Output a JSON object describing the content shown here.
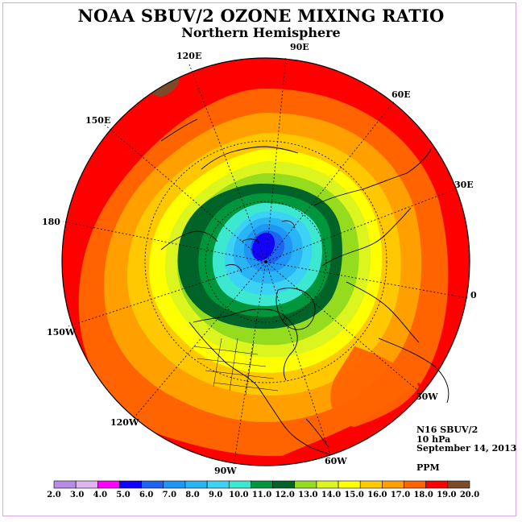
{
  "title": "NOAA SBUV/2 OZONE MIXING RATIO",
  "subtitle": "Northern Hemisphere",
  "longitude_labels": {
    "lon_90E": "90E",
    "lon_60E": "60E",
    "lon_30E": "30E",
    "lon_0": "0",
    "lon_30W": "30W",
    "lon_60W": "60W",
    "lon_90W": "90W",
    "lon_120W": "120W",
    "lon_150W": "150W",
    "lon_180": "180",
    "lon_150E": "150E",
    "lon_120E": "120E"
  },
  "info": {
    "instrument": "N16 SBUV/2",
    "pressure_level": "10 hPa",
    "date": "September 14, 2013",
    "units": "PPM"
  },
  "colorbar": {
    "ticks": [
      "2.0",
      "3.0",
      "4.0",
      "5.0",
      "6.0",
      "7.0",
      "8.0",
      "9.0",
      "10.0",
      "11.0",
      "12.0",
      "13.0",
      "14.0",
      "15.0",
      "16.0",
      "17.0",
      "18.0",
      "19.0",
      "20.0"
    ],
    "colors": [
      "#b88be8",
      "#ddb3f0",
      "#ff00ff",
      "#1400ff",
      "#1e64f0",
      "#1e96f5",
      "#28b4f5",
      "#3cd2f5",
      "#3ce8d0",
      "#00963c",
      "#006428",
      "#96dc1e",
      "#dcf51e",
      "#ffff00",
      "#ffc800",
      "#ffa000",
      "#ff6400",
      "#ff0000",
      "#7a4a2a"
    ]
  },
  "colors": {
    "frame": "#d9a6e3",
    "ocean_background": "#ffffff"
  }
}
